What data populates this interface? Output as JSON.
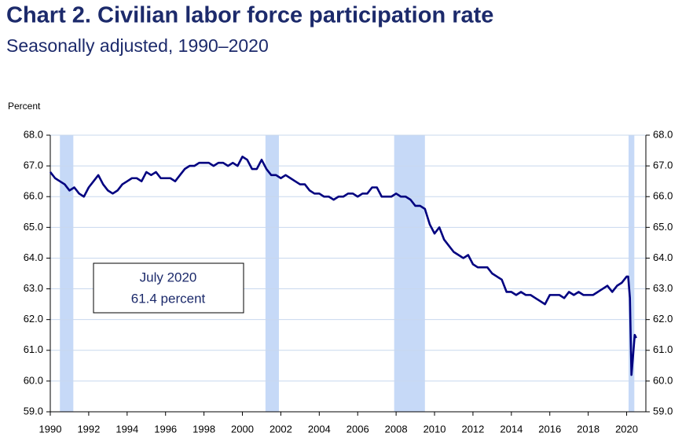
{
  "chart_data": {
    "type": "line",
    "title": "Chart 2. Civilian labor force participation rate",
    "subtitle": "Seasonally adjusted, 1990–2020",
    "y_axis_label": "Percent",
    "annotation": [
      "July 2020",
      "61.4 percent"
    ],
    "color": "#000080",
    "recession_color": "#c6d9f7",
    "recessions": [
      [
        1990.5,
        1991.2
      ],
      [
        2001.2,
        2001.9
      ],
      [
        2007.9,
        2009.5
      ],
      [
        2020.1,
        2020.4
      ]
    ],
    "x": [
      1990,
      1990.25,
      1990.5,
      1990.75,
      1991,
      1991.25,
      1991.5,
      1991.75,
      1992,
      1992.25,
      1992.5,
      1992.75,
      1993,
      1993.25,
      1993.5,
      1993.75,
      1994,
      1994.25,
      1994.5,
      1994.75,
      1995,
      1995.25,
      1995.5,
      1995.75,
      1996,
      1996.25,
      1996.5,
      1996.75,
      1997,
      1997.25,
      1997.5,
      1997.75,
      1998,
      1998.25,
      1998.5,
      1998.75,
      1999,
      1999.25,
      1999.5,
      1999.75,
      2000,
      2000.25,
      2000.5,
      2000.75,
      2001,
      2001.25,
      2001.5,
      2001.75,
      2002,
      2002.25,
      2002.5,
      2002.75,
      2003,
      2003.25,
      2003.5,
      2003.75,
      2004,
      2004.25,
      2004.5,
      2004.75,
      2005,
      2005.25,
      2005.5,
      2005.75,
      2006,
      2006.25,
      2006.5,
      2006.75,
      2007,
      2007.25,
      2007.5,
      2007.75,
      2008,
      2008.25,
      2008.5,
      2008.75,
      2009,
      2009.25,
      2009.5,
      2009.75,
      2010,
      2010.25,
      2010.5,
      2010.75,
      2011,
      2011.25,
      2011.5,
      2011.75,
      2012,
      2012.25,
      2012.5,
      2012.75,
      2013,
      2013.25,
      2013.5,
      2013.75,
      2014,
      2014.25,
      2014.5,
      2014.75,
      2015,
      2015.25,
      2015.5,
      2015.75,
      2016,
      2016.25,
      2016.5,
      2016.75,
      2017,
      2017.25,
      2017.5,
      2017.75,
      2018,
      2018.25,
      2018.5,
      2018.75,
      2019,
      2019.25,
      2019.5,
      2019.75,
      2020,
      2020.08,
      2020.17,
      2020.25,
      2020.33,
      2020.42,
      2020.5
    ],
    "values": [
      66.8,
      66.6,
      66.5,
      66.4,
      66.2,
      66.3,
      66.1,
      66.0,
      66.3,
      66.5,
      66.7,
      66.4,
      66.2,
      66.1,
      66.2,
      66.4,
      66.5,
      66.6,
      66.6,
      66.5,
      66.8,
      66.7,
      66.8,
      66.6,
      66.6,
      66.6,
      66.5,
      66.7,
      66.9,
      67.0,
      67.0,
      67.1,
      67.1,
      67.1,
      67.0,
      67.1,
      67.1,
      67.0,
      67.1,
      67.0,
      67.3,
      67.2,
      66.9,
      66.9,
      67.2,
      66.9,
      66.7,
      66.7,
      66.6,
      66.7,
      66.6,
      66.5,
      66.4,
      66.4,
      66.2,
      66.1,
      66.1,
      66.0,
      66.0,
      65.9,
      66.0,
      66.0,
      66.1,
      66.1,
      66.0,
      66.1,
      66.1,
      66.3,
      66.3,
      66.0,
      66.0,
      66.0,
      66.1,
      66.0,
      66.0,
      65.9,
      65.7,
      65.7,
      65.6,
      65.1,
      64.8,
      65.0,
      64.6,
      64.4,
      64.2,
      64.1,
      64.0,
      64.1,
      63.8,
      63.7,
      63.7,
      63.7,
      63.5,
      63.4,
      63.3,
      62.9,
      62.9,
      62.8,
      62.9,
      62.8,
      62.8,
      62.7,
      62.6,
      62.5,
      62.8,
      62.8,
      62.8,
      62.7,
      62.9,
      62.8,
      62.9,
      62.8,
      62.8,
      62.8,
      62.9,
      63.0,
      63.1,
      62.9,
      63.1,
      63.2,
      63.4,
      63.4,
      62.7,
      60.2,
      60.8,
      61.5,
      61.4
    ],
    "xlim": [
      1990,
      2021
    ],
    "xticks": [
      1990,
      1992,
      1994,
      1996,
      1998,
      2000,
      2002,
      2004,
      2006,
      2008,
      2010,
      2012,
      2014,
      2016,
      2018,
      2020
    ],
    "ylim": [
      59,
      68
    ],
    "yticks": [
      {
        "value": 59,
        "label": "59.0"
      },
      {
        "value": 60,
        "label": "60.0"
      },
      {
        "value": 61,
        "label": "61.0"
      },
      {
        "value": 62,
        "label": "62.0"
      },
      {
        "value": 63,
        "label": "63.0"
      },
      {
        "value": 64,
        "label": "64.0"
      },
      {
        "value": 65,
        "label": "65.0"
      },
      {
        "value": 66,
        "label": "66.0"
      },
      {
        "value": 67,
        "label": "67.0"
      },
      {
        "value": 68,
        "label": "68.0"
      }
    ],
    "grid": true
  }
}
